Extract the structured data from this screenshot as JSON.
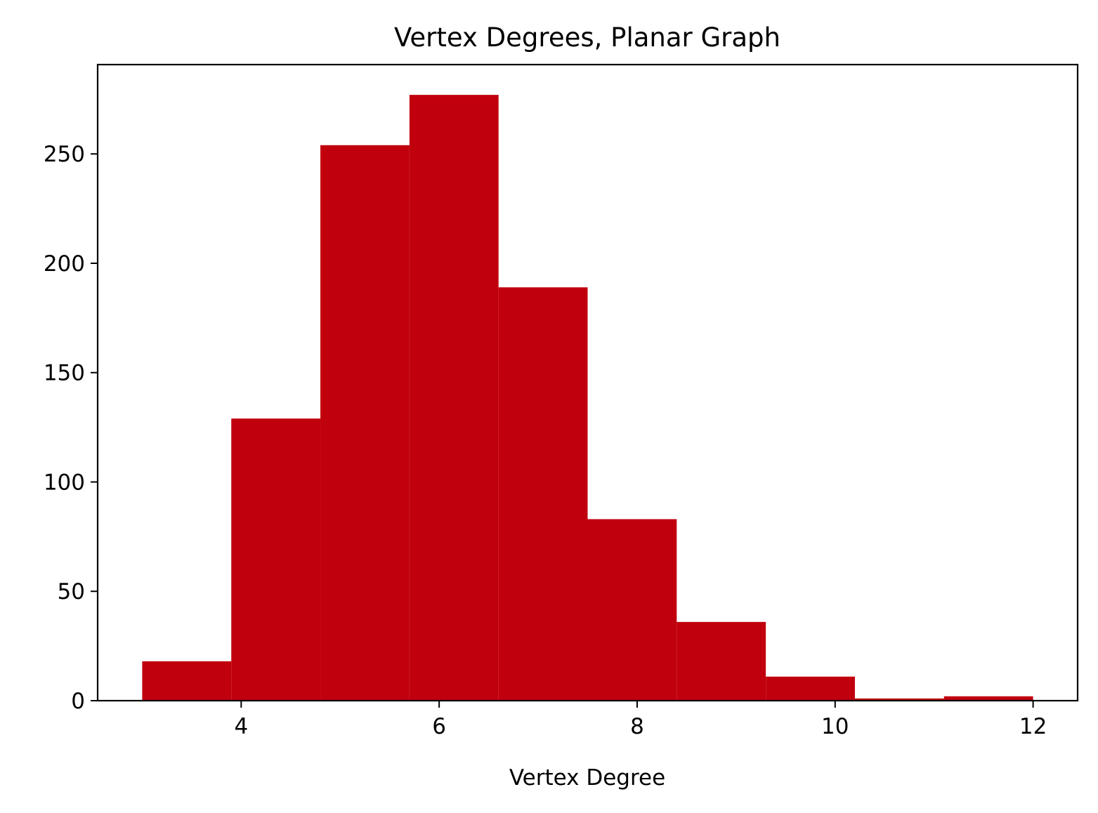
{
  "chart_data": {
    "type": "bar",
    "title": "Vertex Degrees, Planar Graph",
    "xlabel": "Vertex Degree",
    "ylabel": "",
    "bar_color": "#c1000d",
    "bins": [
      {
        "x0": 3.0,
        "x1": 3.9,
        "count": 18
      },
      {
        "x0": 3.9,
        "x1": 4.8,
        "count": 129
      },
      {
        "x0": 4.8,
        "x1": 5.7,
        "count": 254
      },
      {
        "x0": 5.7,
        "x1": 6.6,
        "count": 277
      },
      {
        "x0": 6.6,
        "x1": 7.5,
        "count": 189
      },
      {
        "x0": 7.5,
        "x1": 8.4,
        "count": 83
      },
      {
        "x0": 8.4,
        "x1": 9.3,
        "count": 36
      },
      {
        "x0": 9.3,
        "x1": 10.2,
        "count": 11
      },
      {
        "x0": 10.2,
        "x1": 11.1,
        "count": 1
      },
      {
        "x0": 11.1,
        "x1": 12.0,
        "count": 2
      }
    ],
    "xlim": [
      2.55,
      12.45
    ],
    "ylim": [
      0,
      290.85
    ],
    "xticks": [
      4,
      6,
      8,
      10,
      12
    ],
    "yticks": [
      0,
      50,
      100,
      150,
      200,
      250
    ],
    "grid": false,
    "legend": "none"
  }
}
